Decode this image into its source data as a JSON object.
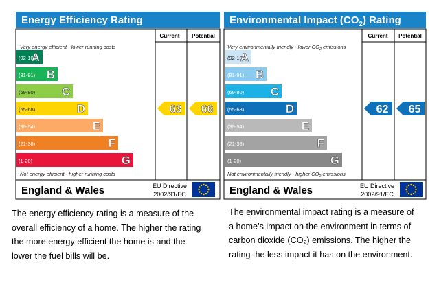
{
  "energy": {
    "title": "Energy Efficiency Rating",
    "header_current": "Current",
    "header_potential": "Potential",
    "top_note": "Very energy efficient - lower running costs",
    "bottom_note": "Not energy efficient - higher running costs",
    "country": "England & Wales",
    "directive_line1": "EU Directive",
    "directive_line2": "2002/91/EC",
    "current": "63",
    "potential": "66",
    "current_band": "D",
    "potential_band": "D",
    "band_colors": [
      "#008054",
      "#19b459",
      "#8dce46",
      "#ffd500",
      "#fcaa65",
      "#ef8023",
      "#e9153b"
    ],
    "arrow_color": "#ffd500",
    "description_lines": [
      "The energy efficiency rating is a measure of the",
      "overall efficiency of a home. The higher the rating",
      "the more energy efficient the home is and the",
      "lower the fuel bills will be."
    ]
  },
  "environment": {
    "title_pre": "Environmental Impact (CO",
    "title_sub": "2",
    "title_post": ") Rating",
    "header_current": "Current",
    "header_potential": "Potential",
    "top_note_pre": "Very environmentally friendly - lower CO",
    "top_note_sub": "2",
    "top_note_post": " emissions",
    "bottom_note_pre": "Not environmentally friendly - higher CO",
    "bottom_note_sub": "2",
    "bottom_note_post": " emissions",
    "country": "England & Wales",
    "directive_line1": "EU Directive",
    "directive_line2": "2002/91/EC",
    "current": "62",
    "potential": "65",
    "current_band": "D",
    "potential_band": "D",
    "band_colors": [
      "#cde4f5",
      "#8ccbf0",
      "#1db2e6",
      "#0f71ba",
      "#b9b9b9",
      "#a3a3a3",
      "#888888"
    ],
    "arrow_color": "#0f71ba",
    "description_lines": [
      "The environmental impact rating is a measure of",
      "a home’s impact on the environment in terms of",
      "carbon dioxide (CO₂) emissions. The higher the",
      "rating the less impact it has on the environment."
    ]
  },
  "bands": [
    {
      "range": "(92-100)",
      "letter": "A"
    },
    {
      "range": "(81-91)",
      "letter": "B"
    },
    {
      "range": "(69-80)",
      "letter": "C"
    },
    {
      "range": "(55-68)",
      "letter": "D"
    },
    {
      "range": "(39-54)",
      "letter": "E"
    },
    {
      "range": "(21-38)",
      "letter": "F"
    },
    {
      "range": "(1-20)",
      "letter": "G"
    }
  ],
  "colors": {
    "header_bg": "#1a84c8",
    "eu_flag": "#003399",
    "eu_stars": "#ffcc00"
  },
  "chart_data": [
    {
      "type": "bar",
      "title": "Energy Efficiency Rating",
      "categories": [
        "A",
        "B",
        "C",
        "D",
        "E",
        "F",
        "G"
      ],
      "ranges": [
        "92-100",
        "81-91",
        "69-80",
        "55-68",
        "39-54",
        "21-38",
        "1-20"
      ],
      "current": 63,
      "potential": 66
    },
    {
      "type": "bar",
      "title": "Environmental Impact (CO2) Rating",
      "categories": [
        "A",
        "B",
        "C",
        "D",
        "E",
        "F",
        "G"
      ],
      "ranges": [
        "92-100",
        "81-91",
        "69-80",
        "55-68",
        "39-54",
        "21-38",
        "1-20"
      ],
      "current": 62,
      "potential": 65
    }
  ]
}
